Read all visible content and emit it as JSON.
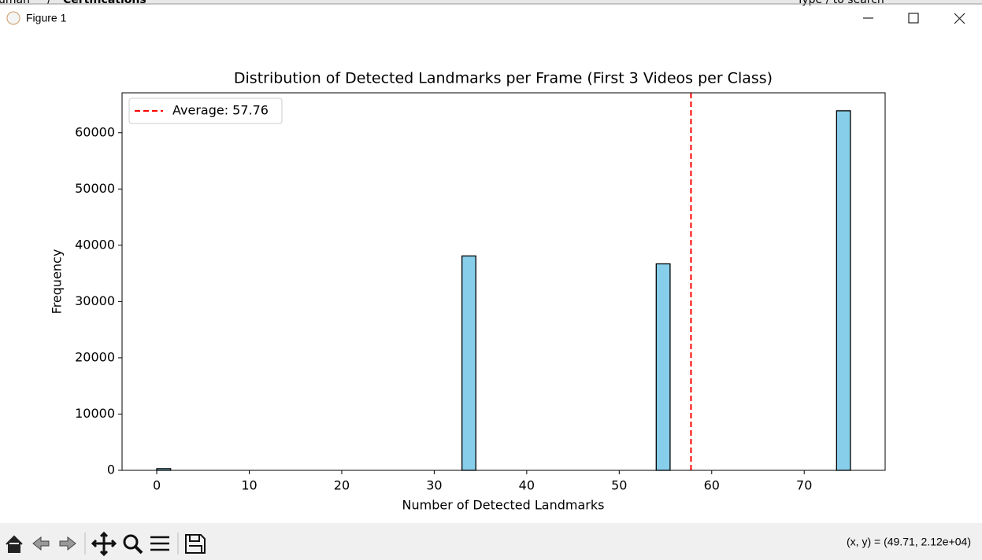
{
  "window": {
    "title": "Figure 1",
    "background_texts": [
      "uman",
      "/",
      "Certifications",
      "Type / to search"
    ],
    "status": "(x, y) = (49.71, 2.12e+04)"
  },
  "chart_data": {
    "type": "histogram",
    "title": "Distribution of Detected Landmarks per Frame (First 3 Videos per Class)",
    "x_label": "Number of Detected Landmarks",
    "y_label": "Frequency",
    "bins": [
      0,
      1.5,
      3,
      4.5,
      6,
      7.5,
      9,
      10.5,
      12,
      13.5,
      15,
      16.5,
      18,
      19.5,
      21,
      22.5,
      24,
      25.5,
      27,
      28.5,
      30,
      31.5,
      33,
      34.5,
      36,
      37.5,
      39,
      40.5,
      42,
      43.5,
      45,
      46.5,
      48,
      49.5,
      51,
      52.5,
      54,
      55.5,
      57,
      58.5,
      60,
      61.5,
      63,
      64.5,
      66,
      67.5,
      69,
      70.5,
      72,
      73.5,
      75
    ],
    "values": [
      300,
      0,
      0,
      0,
      0,
      0,
      0,
      0,
      0,
      0,
      0,
      0,
      0,
      0,
      0,
      0,
      0,
      0,
      0,
      0,
      0,
      0,
      38100,
      0,
      0,
      0,
      0,
      0,
      0,
      0,
      0,
      0,
      0,
      0,
      0,
      0,
      36700,
      0,
      0,
      0,
      0,
      0,
      0,
      0,
      0,
      0,
      0,
      0,
      0,
      63900
    ],
    "color": "#87ceeb",
    "edge_color": "#000000",
    "vline": {
      "value": 57.76,
      "label": "Average: 57.76",
      "color": "#ff0000"
    },
    "legend_position": "upper left",
    "xlim": [
      -3.75,
      78.75
    ],
    "xticks": [
      0,
      10,
      20,
      30,
      40,
      50,
      60,
      70
    ],
    "ylim": [
      0,
      67095
    ],
    "yticks": [
      0,
      10000,
      20000,
      30000,
      40000,
      50000,
      60000
    ]
  }
}
